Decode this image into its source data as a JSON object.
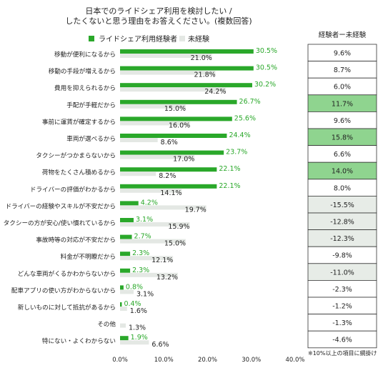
{
  "chart_data": {
    "type": "bar",
    "title": "日本でのライドシェア利用を検討したい / したくないと思う理由をお答えください。(複数回答)",
    "title_lines": [
      "日本でのライドシェア利用を検討したい /",
      "したくないと思う理由をお答えください。(複数回答)"
    ],
    "orientation": "horizontal",
    "categories": [
      "移動が便利になるから",
      "移動の手段が増えるから",
      "費用を抑えられるから",
      "手配が手軽だから",
      "事前に運賃が確定するから",
      "車両が選べるから",
      "タクシーがつかまらないから",
      "荷物をたくさん積めるから",
      "ドライバーの評価がわかるから",
      "ドライバーの経験やスキルが不安だから",
      "タクシーの方が安心/使い慣れているから",
      "事故時等の対応が不安だから",
      "料金が不明瞭だから",
      "どんな車両がくるかわからないから",
      "配車アプリの使い方がわからないから",
      "新しいものに対して抵抗があるから",
      "その他",
      "特にない・よくわからない"
    ],
    "series": [
      {
        "name": "ライドシェア利用経験者",
        "color": "#2aa82a",
        "values": [
          30.5,
          30.5,
          30.2,
          26.7,
          25.6,
          24.4,
          23.7,
          22.1,
          22.1,
          4.2,
          3.1,
          2.7,
          2.3,
          2.3,
          0.8,
          0.4,
          null,
          1.9
        ],
        "labels": [
          "30.5%",
          "30.5%",
          "30.2%",
          "26.7%",
          "25.6%",
          "24.4%",
          "23.7%",
          "22.1%",
          "22.1%",
          "4.2%",
          "3.1%",
          "2.7%",
          "2.3%",
          "2.3%",
          "0.8%",
          "0.4%",
          "",
          "1.9%"
        ]
      },
      {
        "name": "未経験",
        "color": "#e4e8e4",
        "values": [
          21.0,
          21.8,
          24.2,
          15.0,
          16.0,
          8.6,
          17.0,
          8.2,
          14.1,
          19.7,
          15.9,
          15.0,
          12.1,
          13.2,
          3.1,
          1.6,
          1.3,
          6.6
        ],
        "labels": [
          "21.0%",
          "21.8%",
          "24.2%",
          "15.0%",
          "16.0%",
          "8.6%",
          "17.0%",
          "8.2%",
          "14.1%",
          "19.7%",
          "15.9%",
          "15.0%",
          "12.1%",
          "13.2%",
          "3.1%",
          "1.6%",
          "1.3%",
          "6.6%"
        ]
      }
    ],
    "xlim": [
      0,
      40
    ],
    "x_ticks": [
      "0.0%",
      "10.0%",
      "20.0%",
      "30.0%",
      "40.0%"
    ],
    "grid": false,
    "legend_position": "top",
    "diff_table": {
      "header": "経験者ー未経験",
      "values": [
        9.6,
        8.7,
        6.0,
        11.7,
        9.6,
        15.8,
        6.6,
        14.0,
        8.0,
        -15.5,
        -12.8,
        -12.3,
        -9.8,
        -11.0,
        -2.3,
        -1.2,
        -1.3,
        -4.6
      ],
      "labels": [
        "9.6%",
        "8.7%",
        "6.0%",
        "11.7%",
        "9.6%",
        "15.8%",
        "6.6%",
        "14.0%",
        "8.0%",
        "-15.5%",
        "-12.8%",
        "-12.3%",
        "-9.8%",
        "-11.0%",
        "-2.3%",
        "-1.2%",
        "-1.3%",
        "-4.6%"
      ],
      "highlight_positive_color": "#8fd48f",
      "highlight_negative_color": "#e7ece7",
      "note": "※10%以上の項目に網掛け"
    }
  }
}
